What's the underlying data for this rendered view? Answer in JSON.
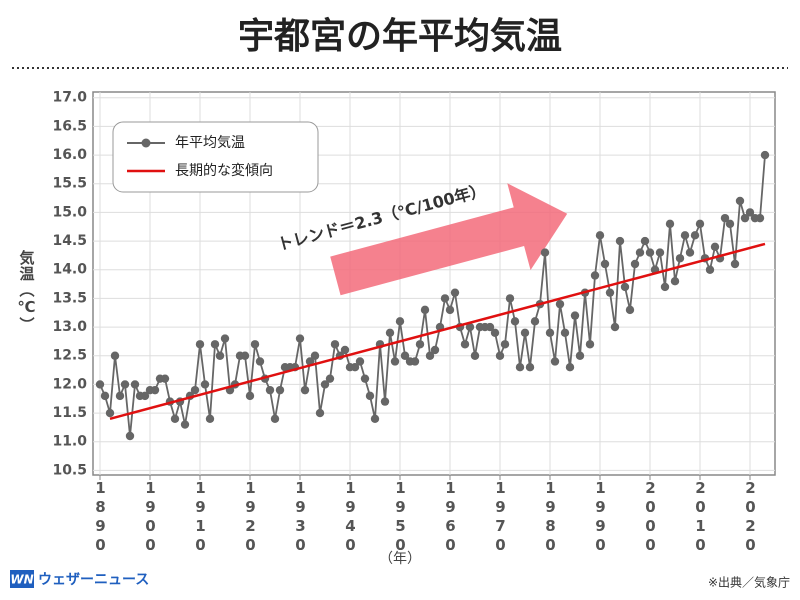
{
  "chart_data": {
    "type": "line",
    "title": "宇都宮の年平均気温",
    "y_label": "気温（℃）",
    "x_label": "（年）",
    "annotation": "トレンド＝2.3（℃/100年）",
    "source": "※出典／気象庁",
    "logo": {
      "mark": "WN",
      "name": "ウェザーニュース"
    },
    "x": [
      1890,
      1891,
      1892,
      1893,
      1894,
      1895,
      1896,
      1897,
      1898,
      1899,
      1900,
      1901,
      1902,
      1903,
      1904,
      1905,
      1906,
      1907,
      1908,
      1909,
      1910,
      1911,
      1912,
      1913,
      1914,
      1915,
      1916,
      1917,
      1918,
      1919,
      1920,
      1921,
      1922,
      1923,
      1924,
      1925,
      1926,
      1927,
      1928,
      1929,
      1930,
      1931,
      1932,
      1933,
      1934,
      1935,
      1936,
      1937,
      1938,
      1939,
      1940,
      1941,
      1942,
      1943,
      1944,
      1945,
      1946,
      1947,
      1948,
      1949,
      1950,
      1951,
      1952,
      1953,
      1954,
      1955,
      1956,
      1957,
      1958,
      1959,
      1960,
      1961,
      1962,
      1963,
      1964,
      1965,
      1966,
      1967,
      1968,
      1969,
      1970,
      1971,
      1972,
      1973,
      1974,
      1975,
      1976,
      1977,
      1978,
      1979,
      1980,
      1981,
      1982,
      1983,
      1984,
      1985,
      1986,
      1987,
      1988,
      1989,
      1990,
      1991,
      1992,
      1993,
      1994,
      1995,
      1996,
      1997,
      1998,
      1999,
      2000,
      2001,
      2002,
      2003,
      2004,
      2005,
      2006,
      2007,
      2008,
      2009,
      2010,
      2011,
      2012,
      2013,
      2014,
      2015,
      2016,
      2017,
      2018,
      2019,
      2020,
      2021,
      2022,
      2023
    ],
    "series": [
      {
        "name": "年平均気温",
        "color": "#666666",
        "values": [
          12.0,
          11.8,
          11.5,
          12.5,
          11.8,
          12.0,
          11.1,
          12.0,
          11.8,
          11.8,
          11.9,
          11.9,
          12.1,
          12.1,
          11.7,
          11.4,
          11.7,
          11.3,
          11.8,
          11.9,
          12.7,
          12.0,
          11.4,
          12.7,
          12.5,
          12.8,
          11.9,
          12.0,
          12.5,
          12.5,
          11.8,
          12.7,
          12.4,
          12.1,
          11.9,
          11.4,
          11.9,
          12.3,
          12.3,
          12.3,
          12.8,
          11.9,
          12.4,
          12.5,
          11.5,
          12.0,
          12.1,
          12.7,
          12.5,
          12.6,
          12.3,
          12.3,
          12.4,
          12.1,
          11.8,
          11.4,
          12.7,
          11.7,
          12.9,
          12.4,
          13.1,
          12.5,
          12.4,
          12.4,
          12.7,
          13.3,
          12.5,
          12.6,
          13.0,
          13.5,
          13.3,
          13.6,
          13.0,
          12.7,
          13.0,
          12.5,
          13.0,
          13.0,
          13.0,
          12.9,
          12.5,
          12.7,
          13.5,
          13.1,
          12.3,
          12.9,
          12.3,
          13.1,
          13.4,
          14.3,
          12.9,
          12.4,
          13.4,
          12.9,
          12.3,
          13.2,
          12.5,
          13.6,
          12.7,
          13.9,
          14.6,
          14.1,
          13.6,
          13.0,
          14.5,
          13.7,
          13.3,
          14.1,
          14.3,
          14.5,
          14.3,
          14.0,
          14.3,
          13.7,
          14.8,
          13.8,
          14.2,
          14.6,
          14.3,
          14.6,
          14.8,
          14.2,
          14.0,
          14.4,
          14.2,
          14.9,
          14.8,
          14.1,
          15.2,
          14.9,
          15.0,
          14.9,
          14.9,
          16.0
        ]
      },
      {
        "name": "長期的な変傾向",
        "color": "#e01010",
        "x": [
          1892,
          2023
        ],
        "values": [
          11.4,
          14.45
        ]
      }
    ],
    "xlim": [
      1888.6,
      2025
    ],
    "xticks": [
      1890,
      1900,
      1910,
      1920,
      1930,
      1940,
      1950,
      1960,
      1970,
      1980,
      1990,
      2000,
      2010,
      2020
    ],
    "ylim": [
      10.42,
      17.1
    ],
    "yticks": [
      10.5,
      {
        "value": 11,
        "label": "11.0"
      },
      11.5,
      {
        "value": 12,
        "label": "12.0"
      },
      12.5,
      {
        "value": 13,
        "label": "13.0"
      },
      13.5,
      {
        "value": 14,
        "label": "14.0"
      },
      14.5,
      {
        "value": 15,
        "label": "15.0"
      },
      15.5,
      {
        "value": 16,
        "label": "16.0"
      },
      16.5,
      {
        "value": 17,
        "label": "17.0"
      }
    ],
    "grid": true,
    "legend": "upper left"
  }
}
